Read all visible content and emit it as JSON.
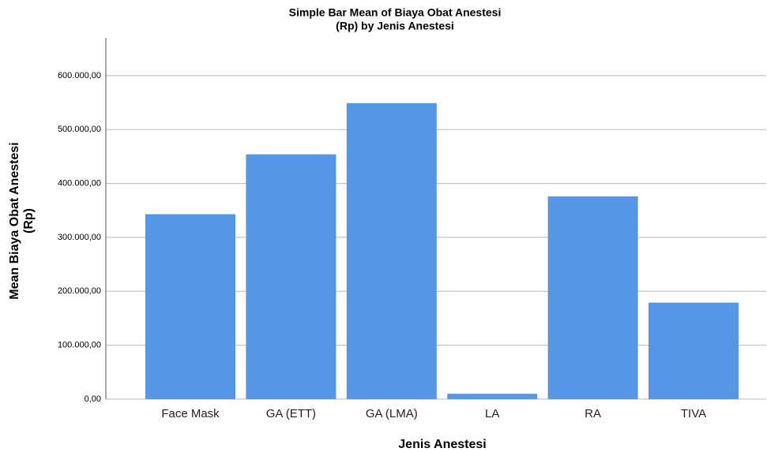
{
  "chart_data": {
    "type": "bar",
    "title": [
      "Simple Bar Mean of Biaya Obat Anestesi",
      "(Rp) by Jenis Anestesi"
    ],
    "x_label": "Jenis Anestesi",
    "y_label": [
      "Mean Biaya Obat Anestesi",
      "(Rp)"
    ],
    "categories": [
      "Face Mask",
      "GA (ETT)",
      "GA (LMA)",
      "LA",
      "RA",
      "TIVA"
    ],
    "values": [
      343000,
      454000,
      549000,
      10000,
      376000,
      179000
    ],
    "color": "#5596e6",
    "ylim": [
      0,
      670000
    ],
    "yticks": [
      {
        "value": 0,
        "label": "0,00"
      },
      {
        "value": 100000,
        "label": "100.000,00"
      },
      {
        "value": 200000,
        "label": "200.000,00"
      },
      {
        "value": 300000,
        "label": "300.000,00"
      },
      {
        "value": 400000,
        "label": "400.000,00"
      },
      {
        "value": 500000,
        "label": "500.000,00"
      },
      {
        "value": 600000,
        "label": "600.000,00"
      }
    ],
    "grid": true
  }
}
